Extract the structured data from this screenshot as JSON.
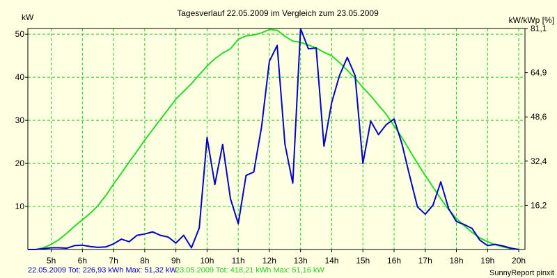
{
  "chart_data": {
    "type": "line",
    "title": "Tagesverlauf 22.05.2009 im Vergleich zum 23.05.2009",
    "ylabel_left": "kW",
    "ylabel_right": "kW/kWp [%]",
    "x_range": [
      4.25,
      20.2
    ],
    "ylim": [
      0,
      51.32
    ],
    "x_ticks": [
      {
        "value": 5,
        "label": "5h"
      },
      {
        "value": 6,
        "label": "6h"
      },
      {
        "value": 7,
        "label": "7h"
      },
      {
        "value": 8,
        "label": "8h"
      },
      {
        "value": 9,
        "label": "9h"
      },
      {
        "value": 10,
        "label": "10h"
      },
      {
        "value": 11,
        "label": "11h"
      },
      {
        "value": 12,
        "label": "12h"
      },
      {
        "value": 13,
        "label": "13h"
      },
      {
        "value": 14,
        "label": "14h"
      },
      {
        "value": 15,
        "label": "15h"
      },
      {
        "value": 16,
        "label": "16h"
      },
      {
        "value": 17,
        "label": "17h"
      },
      {
        "value": 18,
        "label": "18h"
      },
      {
        "value": 19,
        "label": "19h"
      },
      {
        "value": 20,
        "label": "20h"
      }
    ],
    "y_ticks_left": [
      {
        "value": 10,
        "label": "10"
      },
      {
        "value": 20,
        "label": "20"
      },
      {
        "value": 30,
        "label": "30"
      },
      {
        "value": 40,
        "label": "40"
      },
      {
        "value": 50,
        "label": "50"
      }
    ],
    "y_ticks_right": [
      {
        "value": 10.26,
        "label": "16,2"
      },
      {
        "value": 20.53,
        "label": "32,4"
      },
      {
        "value": 30.79,
        "label": "48,6"
      },
      {
        "value": 41.06,
        "label": "64,9"
      },
      {
        "value": 51.32,
        "label": "81,1"
      }
    ],
    "grid": true,
    "series": [
      {
        "color": "#0000cc",
        "x": [
          4.25,
          4.5,
          4.75,
          5.0,
          5.25,
          5.5,
          5.75,
          6.0,
          6.25,
          6.5,
          6.75,
          7.0,
          7.25,
          7.5,
          7.75,
          8.0,
          8.25,
          8.5,
          8.75,
          9.0,
          9.25,
          9.5,
          9.75,
          10.0,
          10.25,
          10.5,
          10.75,
          11.0,
          11.25,
          11.5,
          11.75,
          12.0,
          12.25,
          12.5,
          12.75,
          13.0,
          13.25,
          13.5,
          13.75,
          14.0,
          14.25,
          14.5,
          14.75,
          15.0,
          15.25,
          15.5,
          15.75,
          16.0,
          16.25,
          16.5,
          16.75,
          17.0,
          17.25,
          17.5,
          17.75,
          18.0,
          18.25,
          18.5,
          18.75,
          19.0,
          19.25,
          19.5,
          19.75,
          20.0
        ],
        "y": [
          0,
          0,
          0.2,
          0.4,
          0.4,
          0.3,
          0.9,
          1.0,
          0.7,
          0.5,
          0.6,
          1.3,
          2.4,
          1.8,
          3.3,
          3.6,
          4.1,
          3.3,
          2.9,
          1.5,
          3.3,
          0.4,
          5.0,
          26.0,
          15.1,
          24.4,
          11.8,
          6.0,
          17.2,
          18.0,
          28.5,
          43.7,
          47.4,
          24.4,
          15.4,
          51.3,
          46.6,
          46.8,
          24.0,
          34.2,
          40.4,
          44.6,
          40.4,
          20.0,
          29.8,
          26.7,
          29.0,
          30.3,
          24.6,
          17.1,
          9.9,
          8.2,
          10.3,
          15.7,
          9.5,
          6.5,
          5.8,
          4.9,
          2.2,
          0.9,
          1.2,
          0.8,
          0.3,
          0
        ]
      },
      {
        "color": "#22dd22",
        "x": [
          4.25,
          4.5,
          4.75,
          5.0,
          5.25,
          5.5,
          5.75,
          6.0,
          6.25,
          6.5,
          6.75,
          7.0,
          7.25,
          7.5,
          7.75,
          8.0,
          8.25,
          8.5,
          8.75,
          9.0,
          9.25,
          9.5,
          9.75,
          10.0,
          10.25,
          10.5,
          10.75,
          11.0,
          11.25,
          11.5,
          11.75,
          12.0,
          12.25,
          12.5,
          12.75,
          13.0,
          13.25,
          13.5,
          13.75,
          14.0,
          14.25,
          14.5,
          14.75,
          15.0,
          15.25,
          15.5,
          15.75,
          16.0,
          16.25,
          16.5,
          16.75,
          17.0,
          17.25,
          17.5,
          17.75,
          18.0,
          18.25,
          18.5,
          18.75,
          19.0,
          19.25,
          19.5,
          19.75,
          20.0
        ],
        "y": [
          0,
          0,
          0.4,
          1.2,
          2.3,
          3.8,
          5.4,
          6.9,
          8.4,
          10.2,
          12.5,
          15.2,
          17.7,
          20.3,
          22.8,
          25.4,
          27.8,
          30.2,
          32.5,
          34.9,
          36.7,
          38.5,
          40.6,
          42.6,
          44.3,
          45.6,
          46.6,
          48.8,
          49.6,
          49.8,
          50.3,
          51.1,
          50.9,
          49.5,
          48.4,
          48.1,
          47.5,
          46.8,
          45.8,
          45.0,
          43.4,
          41.6,
          39.8,
          37.6,
          35.7,
          33.5,
          31.4,
          28.7,
          26.0,
          23.0,
          20.0,
          17.2,
          14.5,
          11.8,
          9.3,
          7.2,
          5.5,
          4.0,
          2.7,
          1.8,
          1.1,
          0.6,
          0.2,
          0
        ]
      }
    ],
    "footer": {
      "blue_text": "22.05.2009 Tot: 226,93 kWh Max: 51,32 kW",
      "green_text": "23.05.2009 Tot: 418,21 kWh Max: 51,16 kW",
      "credit": "SunnyReport pinxit"
    }
  }
}
